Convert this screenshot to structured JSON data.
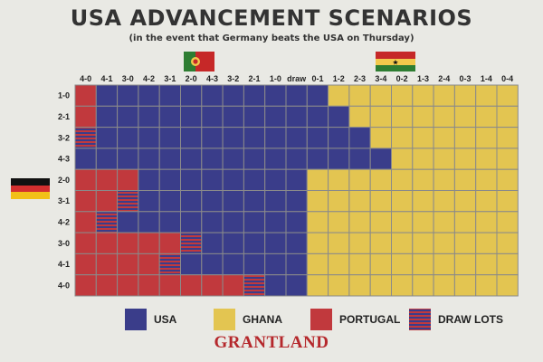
{
  "header": {
    "title": "USA ADVANCEMENT SCENARIOS",
    "subtitle": "(in the event that Germany beats the USA on Thursday)"
  },
  "flags": {
    "germany": "germany-flag-icon",
    "portugal": "portugal-flag-icon",
    "ghana": "ghana-flag-icon"
  },
  "brand": "GRANTLAND",
  "colors": {
    "USA": "#3a3d8a",
    "GHANA": "#e3c551",
    "PORTUGAL": "#c1393d",
    "DRAW LOTS": "stripes",
    "background": "#e9e9e4",
    "grid": "#8a8a8a"
  },
  "chart_data": {
    "type": "heatmap",
    "title": "USA ADVANCEMENT SCENARIOS",
    "subtitle": "(in the event that Germany beats the USA on Thursday)",
    "x_categories": [
      "4-0",
      "4-1",
      "3-0",
      "4-2",
      "3-1",
      "2-0",
      "4-3",
      "3-2",
      "2-1",
      "1-0",
      "draw",
      "0-1",
      "1-2",
      "2-3",
      "3-4",
      "0-2",
      "1-3",
      "2-4",
      "0-3",
      "1-4",
      "0-4"
    ],
    "y_categories": [
      "1-0",
      "2-1",
      "3-2",
      "4-3",
      "2-0",
      "3-1",
      "4-2",
      "3-0",
      "4-1",
      "4-0"
    ],
    "legend": [
      {
        "key": "U",
        "label": "USA"
      },
      {
        "key": "G",
        "label": "GHANA"
      },
      {
        "key": "P",
        "label": "PORTUGAL"
      },
      {
        "key": "D",
        "label": "DRAW LOTS"
      }
    ],
    "grid": [
      "PUUUUUUUUUUUGGGGGGGGG",
      "PUUUUUUUUUUUUGGGGGGGG",
      "DUUUUUUUUUUUUUGGGGGGG",
      "UUUUUUUUUUUUUUUGGGGGG",
      "PPPUUUUUUUUGGGGGGGGGG",
      "PPDUUUUUUUUGGGGGGGGGG",
      "PDUUUUUUUUUGGGGGGGGGG",
      "PPPPPDUUUUUGGGGGGGGGG",
      "PPPPDUUUUUUGGGGGGGGGG",
      "PPPPPPPPDUUGGGGGGGGGG"
    ]
  }
}
